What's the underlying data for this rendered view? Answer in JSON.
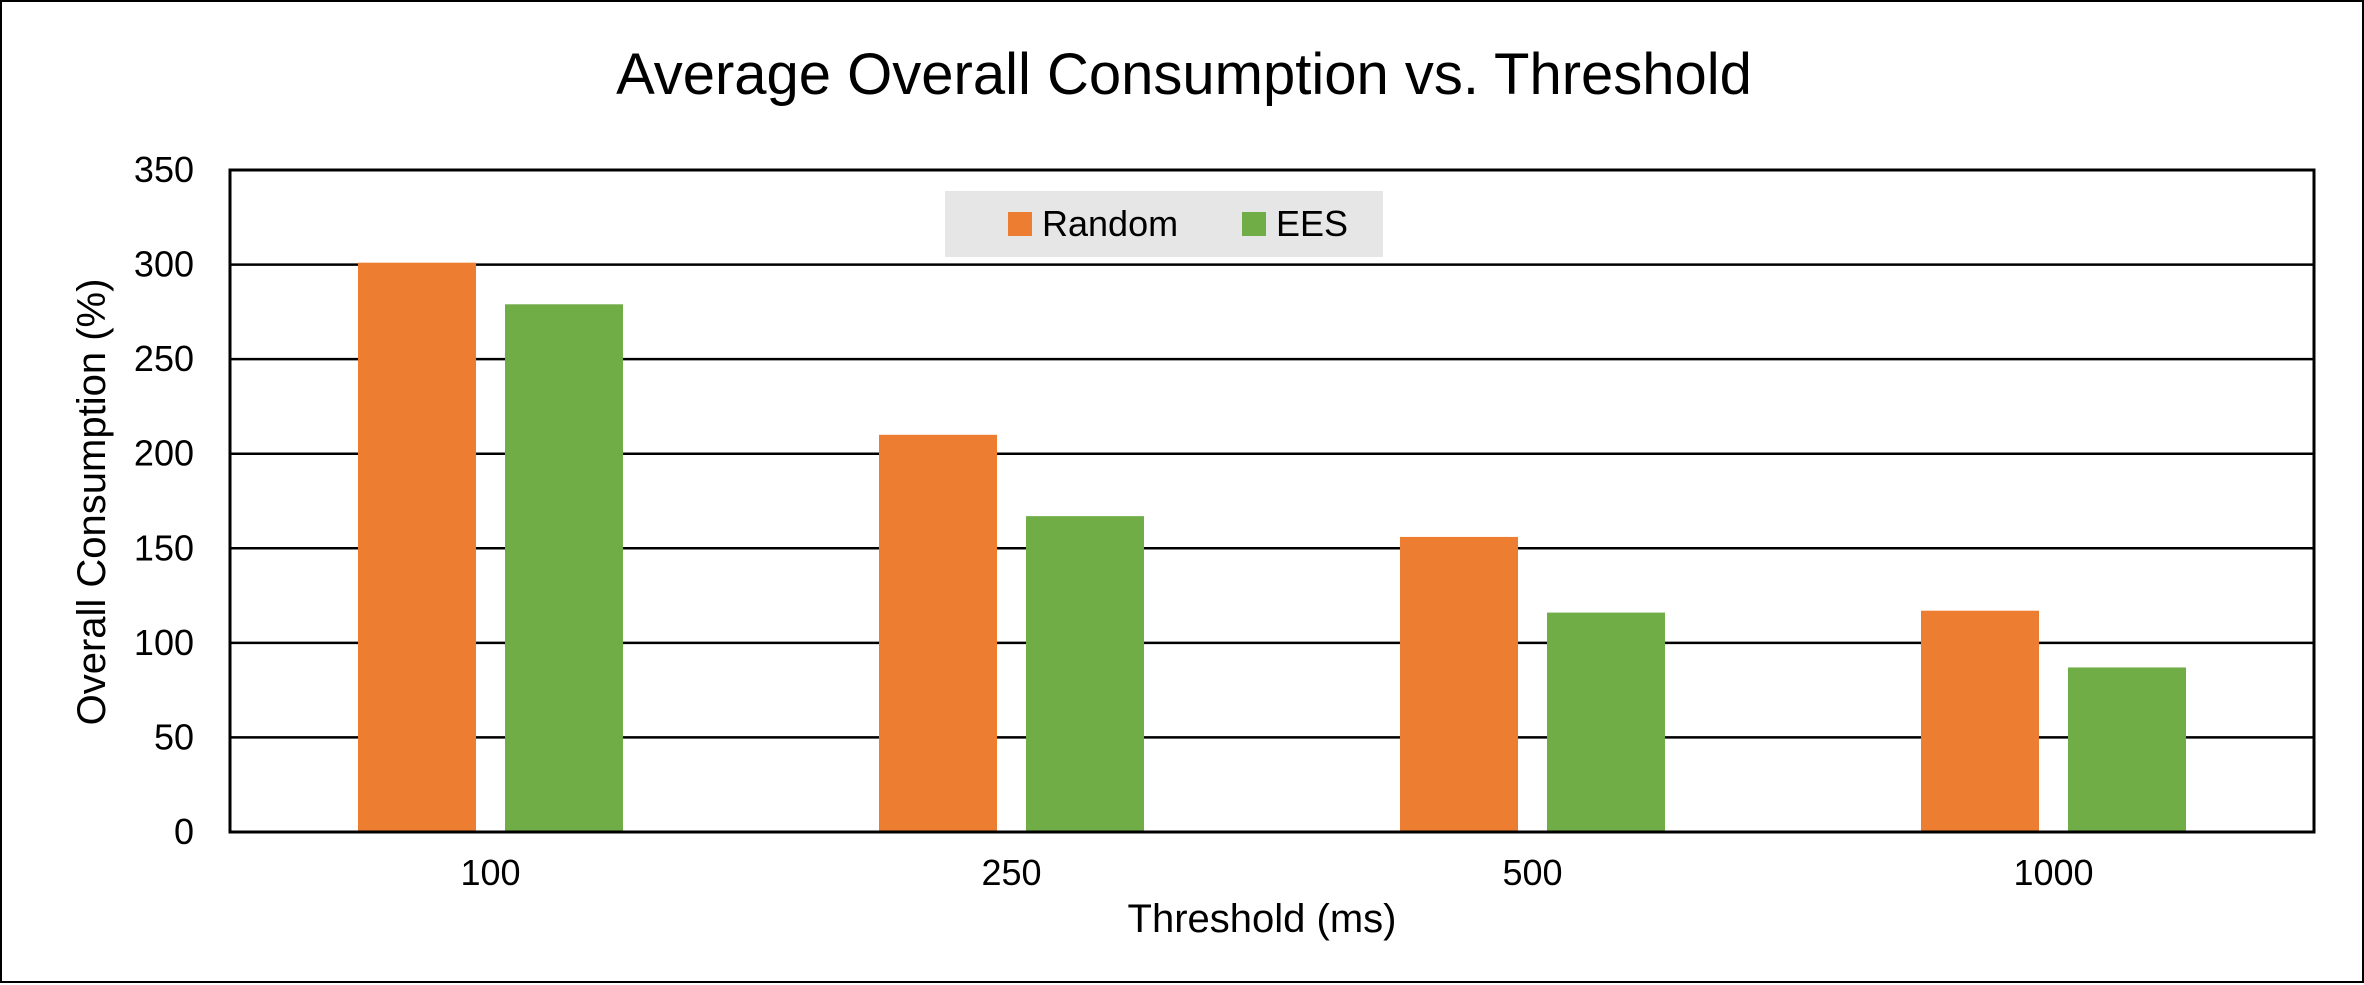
{
  "chart_data": {
    "type": "bar",
    "title": "Average Overall Consumption vs. Threshold",
    "xlabel": "Threshold (ms)",
    "ylabel": "Overall Consumption (%)",
    "categories": [
      "100",
      "250",
      "500",
      "1000"
    ],
    "series": [
      {
        "name": "Random",
        "color": "#ED7D31",
        "values": [
          301,
          210,
          156,
          117
        ]
      },
      {
        "name": "EES",
        "color": "#70AD47",
        "values": [
          279,
          167,
          116,
          87
        ]
      }
    ],
    "ylim": [
      0,
      350
    ],
    "yticks": [
      "0",
      "50",
      "100",
      "150",
      "200",
      "250",
      "300",
      "350"
    ],
    "grid": true,
    "legend_position": "top-center"
  }
}
